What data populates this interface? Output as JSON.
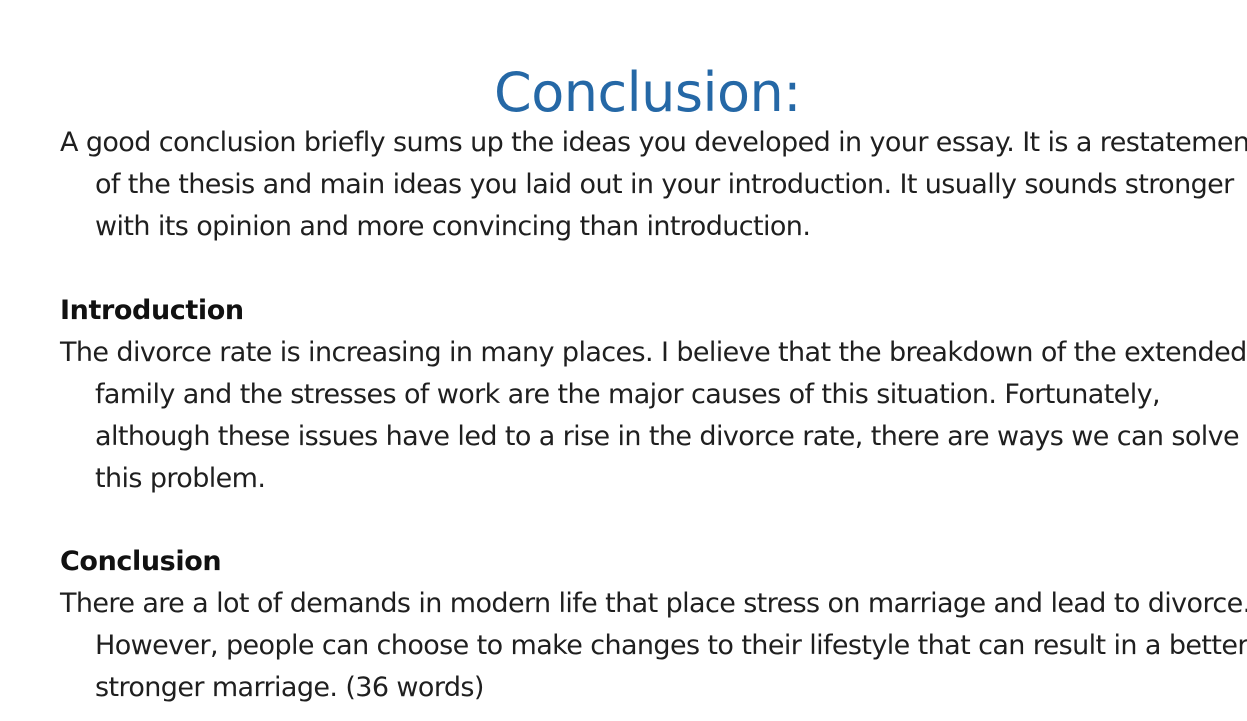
{
  "title": "Conclusion:",
  "intro_paragraph": "A good conclusion briefly sums up the ideas you developed in your essay. It is a restatement of the thesis and main ideas you laid out in your introduction. It usually sounds stronger with its opinion and more convincing than introduction.",
  "sections": [
    {
      "heading": "Introduction",
      "text": "The divorce rate is increasing in many places. I believe that the breakdown of the extended family and the stresses of work are the major causes of this situation. Fortunately, although these issues have led to a rise in the divorce rate, there are ways we can solve this problem."
    },
    {
      "heading": "Conclusion",
      "text": "There are a lot of demands in modern life that place stress on marriage and lead to divorce. However, people can choose to make changes to their lifestyle that can result in a better, stronger marriage. (36 words)"
    }
  ]
}
